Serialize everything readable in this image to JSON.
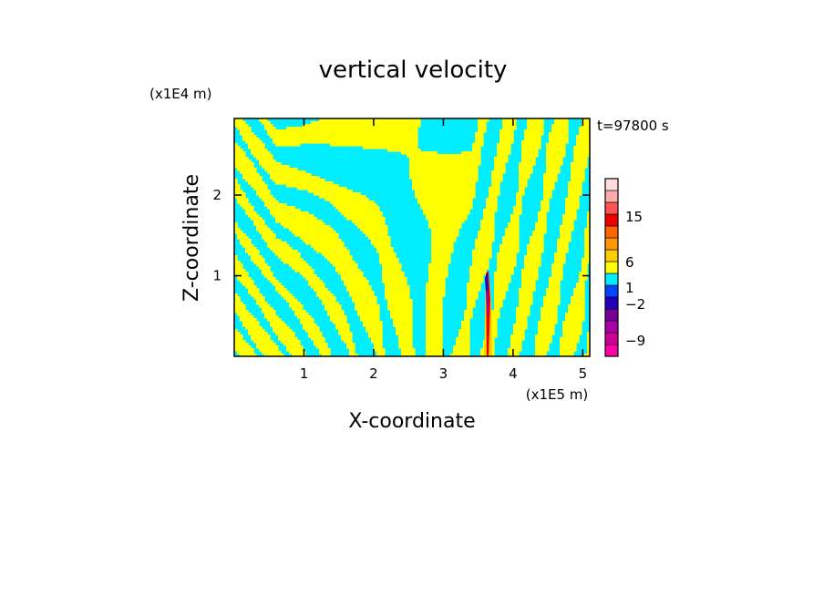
{
  "chart_data": {
    "type": "heatmap",
    "title": "vertical velocity",
    "xlabel": "X-coordinate",
    "ylabel": "Z-coordinate",
    "x_unit": "(x1E5 m)",
    "y_unit": "(x1E4 m)",
    "time_label": "t=97800 s",
    "x_ticks": [
      "1",
      "2",
      "3",
      "4",
      "5"
    ],
    "x_tick_values": [
      1,
      2,
      3,
      4,
      5
    ],
    "y_ticks": [
      "1",
      "2"
    ],
    "y_tick_values": [
      1,
      2
    ],
    "xlim": [
      0,
      5.1
    ],
    "ylim": [
      0,
      2.95
    ],
    "fill_colors": {
      "positive": "#ffff00",
      "negative": "#00eeff"
    },
    "colorbar": {
      "labels": [
        "15",
        "6",
        "1",
        "-2",
        "-9"
      ],
      "label_values": [
        15,
        6,
        1,
        -2,
        -9
      ],
      "segments": [
        {
          "color": "#ff00aa"
        },
        {
          "color": "#cc0099"
        },
        {
          "color": "#aa00aa"
        },
        {
          "color": "#770099"
        },
        {
          "color": "#2200bb"
        },
        {
          "color": "#0044ff"
        },
        {
          "color": "#00eeff"
        },
        {
          "color": "#ffff00"
        },
        {
          "color": "#ffcc00"
        },
        {
          "color": "#ff9900"
        },
        {
          "color": "#ff6600"
        },
        {
          "color": "#ee0000"
        },
        {
          "color": "#ff5555"
        },
        {
          "color": "#ffaaaa"
        },
        {
          "color": "#ffdddd"
        }
      ]
    }
  }
}
